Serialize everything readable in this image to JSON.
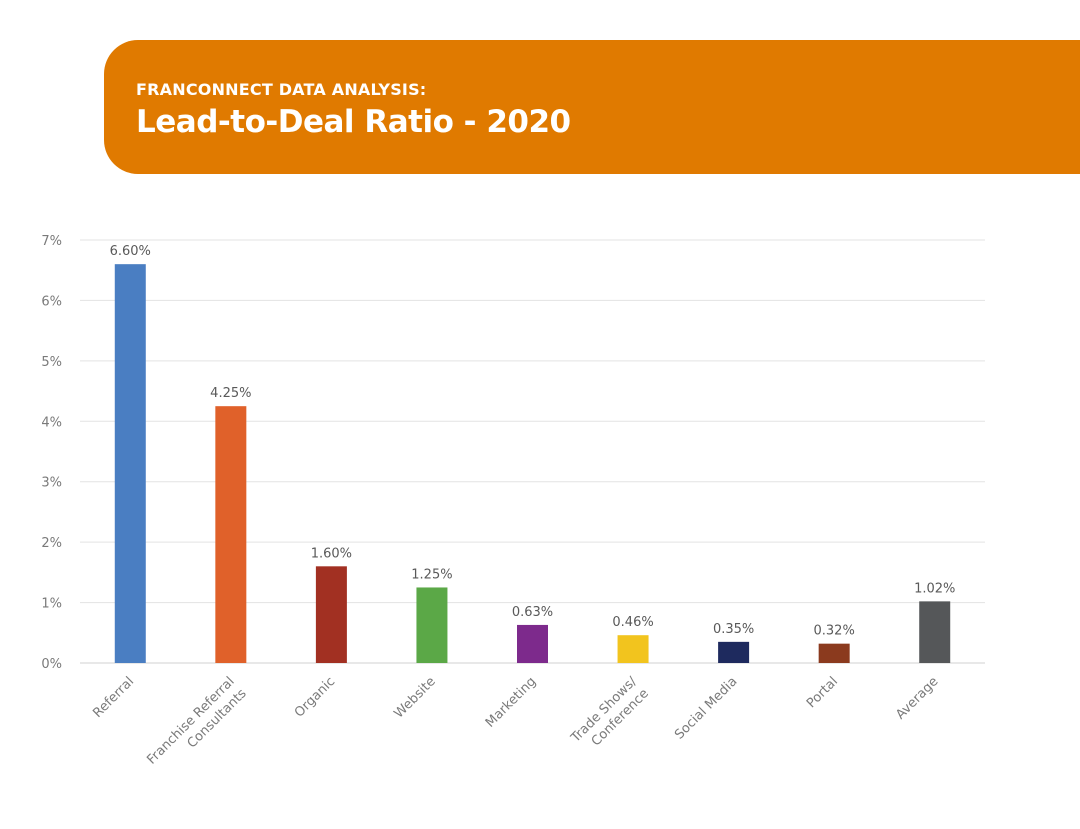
{
  "header": {
    "subtitle": "FRANCONNECT DATA ANALYSIS:",
    "title": "Lead-to-Deal Ratio - 2020",
    "background_color": "#E07A00"
  },
  "chart_data": {
    "type": "bar",
    "title": "Lead-to-Deal Ratio - 2020",
    "xlabel": "",
    "ylabel": "",
    "ylim": [
      0,
      7
    ],
    "yticks": [
      0,
      1,
      2,
      3,
      4,
      5,
      6,
      7
    ],
    "ytick_suffix": "%",
    "grid": true,
    "categories": [
      [
        "Referral"
      ],
      [
        "Franchise Referral",
        "Consultants"
      ],
      [
        "Organic"
      ],
      [
        "Website"
      ],
      [
        "Marketing"
      ],
      [
        "Trade Shows/",
        "Conference"
      ],
      [
        "Social Media"
      ],
      [
        "Portal"
      ],
      [
        "Average"
      ]
    ],
    "values": [
      6.6,
      4.25,
      1.6,
      1.25,
      0.63,
      0.46,
      0.35,
      0.32,
      1.02
    ],
    "data_labels": [
      "6.60%",
      "4.25%",
      "1.60%",
      "1.25%",
      "0.63%",
      "0.46%",
      "0.35%",
      "0.32%",
      "1.02%"
    ],
    "colors": [
      "#4A7EC2",
      "#E0612A",
      "#A23022",
      "#5BA847",
      "#7D2A8C",
      "#F2C41E",
      "#1E2A5E",
      "#8B3A1E",
      "#555759"
    ],
    "grid_color": "#E3E3E3",
    "axis_color": "#E0E0E0",
    "label_color": "#7A7A7A",
    "value_label_color": "#595959"
  }
}
